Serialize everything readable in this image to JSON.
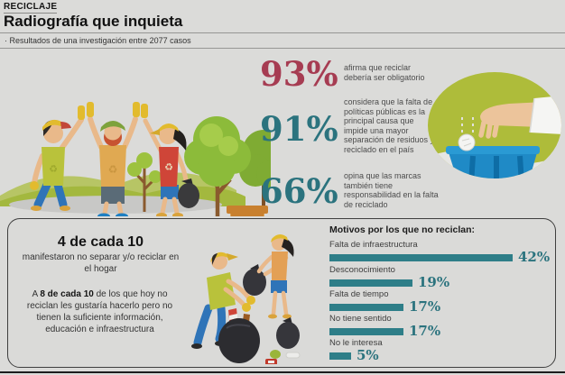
{
  "header": {
    "kicker": "RECICLAJE",
    "title": "Radiografía que inquieta",
    "subtitle": "· Resultados de una investigación entre 2077 casos"
  },
  "colors": {
    "red": "#a63c52",
    "teal": "#2b737e",
    "bar": "#2e7e88"
  },
  "stats": [
    {
      "value": "93%",
      "color": "#a63c52",
      "text": "afirma que reciclar debería ser obligatorio"
    },
    {
      "value": "91%",
      "color": "#2b737e",
      "text": "considera que la falta de políticas públicas es la principal causa que impide una mayor separación de residuos y reciclado en el país"
    },
    {
      "value": "66%",
      "color": "#2b737e",
      "text": "opina que las marcas también tiene responsabilidad en la falta de reciclado"
    }
  ],
  "bottom_box": {
    "stat1_title": "4 de cada 10",
    "stat1_text": "manifestaron no separar y/o reciclar en el hogar",
    "stat2_prefix": "A ",
    "stat2_bold": "8 de cada 10",
    "stat2_rest": " de los que hoy no reciclan les gustaría hacerlo pero no tienen la suficiente información, educación e infraestructura"
  },
  "chart_data": {
    "type": "bar",
    "orientation": "horizontal",
    "title": "Motivos por los que no reciclan:",
    "categories": [
      "Falta de infraestructura",
      "Desconocimiento",
      "Falta de tiempo",
      "No tiene sentido",
      "No le interesa"
    ],
    "values": [
      42,
      19,
      17,
      17,
      5
    ],
    "display_values": [
      "42%",
      "19%",
      "17%",
      "17%",
      "5%"
    ],
    "unit": "%",
    "xlim": [
      0,
      45
    ],
    "bar_color": "#2e7e88",
    "grid": false,
    "legend": false
  },
  "illustrations": {
    "left": "people celebrating recycling cleanup",
    "top_right": "hand dropping crumpled paper into blue bin",
    "bottom_middle": "people collecting trash bags"
  }
}
